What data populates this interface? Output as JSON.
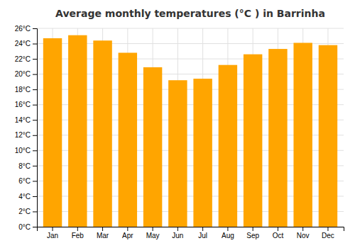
{
  "chart_data": {
    "type": "bar",
    "title": "Average monthly temperatures (°C ) in Barrinha",
    "categories": [
      "Jan",
      "Feb",
      "Mar",
      "Apr",
      "May",
      "Jun",
      "Jul",
      "Aug",
      "Sep",
      "Oct",
      "Nov",
      "Dec"
    ],
    "values": [
      24.7,
      25.1,
      24.4,
      22.8,
      20.9,
      19.2,
      19.4,
      21.2,
      22.6,
      23.3,
      24.1,
      23.8
    ],
    "color": "#FFA500",
    "ylim": [
      0,
      26
    ],
    "yticks": [
      {
        "value": 0,
        "label": "0°C"
      },
      {
        "value": 2,
        "label": "2°C"
      },
      {
        "value": 4,
        "label": "4°C"
      },
      {
        "value": 6,
        "label": "6°C"
      },
      {
        "value": 8,
        "label": "8°C"
      },
      {
        "value": 10,
        "label": "10°C"
      },
      {
        "value": 12,
        "label": "12°C"
      },
      {
        "value": 14,
        "label": "14°C"
      },
      {
        "value": 16,
        "label": "16°C"
      },
      {
        "value": 18,
        "label": "18°C"
      },
      {
        "value": 20,
        "label": "20°C"
      },
      {
        "value": 22,
        "label": "22°C"
      },
      {
        "value": 24,
        "label": "24°C"
      },
      {
        "value": 26,
        "label": "26°C"
      }
    ],
    "grid": true
  }
}
